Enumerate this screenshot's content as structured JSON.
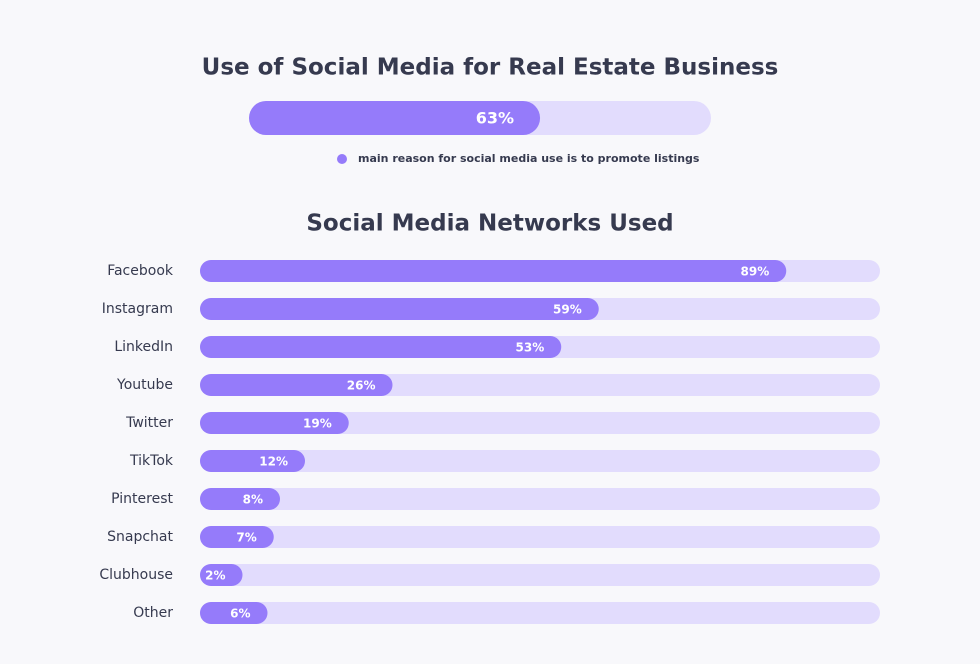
{
  "chart_data": [
    {
      "type": "progress",
      "title": "Use of Social Media for Real Estate Business",
      "series": [
        {
          "name": "main reason for social media use is to promote listings",
          "color": "#957bfa",
          "values": [
            63
          ],
          "value_labels": [
            "63%"
          ]
        }
      ],
      "xlim": [
        0,
        100
      ],
      "track_color": "#e2dcfd"
    },
    {
      "type": "hbar",
      "title": "Social Media Networks Used",
      "categories": [
        "Facebook",
        "Instagram",
        "LinkedIn",
        "Youtube",
        "Twitter",
        "TikTok",
        "Pinterest",
        "Snapchat",
        "Clubhouse",
        "Other"
      ],
      "values": [
        89,
        59,
        53,
        26,
        19,
        12,
        8,
        7,
        2,
        6
      ],
      "value_labels": [
        "89%",
        "59%",
        "53%",
        "26%",
        "19%",
        "12%",
        "8%",
        "7%",
        "2%",
        "6%"
      ],
      "xlim": [
        0,
        100
      ],
      "color": "#957bfa",
      "track_color": "#e2dcfd"
    }
  ]
}
